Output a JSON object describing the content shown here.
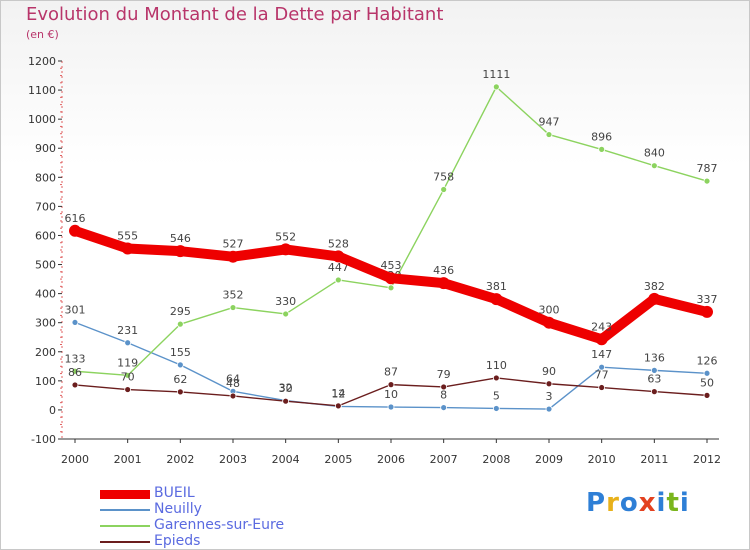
{
  "title": "Evolution du Montant de la Dette par Habitant",
  "subtitle": "(en €)",
  "logo": {
    "text": "Proxiti",
    "colors": [
      "#2e7fd6",
      "#e8b11a",
      "#2e7fd6",
      "#e3411f",
      "#2e7fd6",
      "#7ab51d",
      "#2e7fd6"
    ]
  },
  "chart_data": {
    "type": "line",
    "x": [
      2000,
      2001,
      2002,
      2003,
      2004,
      2005,
      2006,
      2007,
      2008,
      2009,
      2010,
      2011,
      2012
    ],
    "ylim": [
      -100,
      1200
    ],
    "yticks": [
      -100,
      0,
      100,
      200,
      300,
      400,
      500,
      600,
      700,
      800,
      900,
      1000,
      1100,
      1200
    ],
    "grid": false,
    "legend_position": "bottom-left",
    "series": [
      {
        "name": "Neuilly",
        "color": "#5b92c9",
        "values": [
          301,
          231,
          155,
          64,
          32,
          12,
          10,
          8,
          5,
          3,
          147,
          136,
          126
        ],
        "labels": [
          "301",
          "231",
          "155",
          "64",
          "32",
          "12",
          "10",
          "8",
          "5",
          "3",
          "147",
          "136",
          "126"
        ]
      },
      {
        "name": "Garennes-sur-Eure",
        "color": "#8cd35f",
        "values": [
          133,
          119,
          295,
          352,
          330,
          447,
          420,
          758,
          1111,
          947,
          896,
          840,
          787
        ],
        "labels": [
          "133",
          "119",
          "295",
          "352",
          "330",
          "447",
          "420",
          "758",
          "1111",
          "947",
          "896",
          "840",
          "787"
        ]
      },
      {
        "name": "Epieds",
        "color": "#6b1e1e",
        "values": [
          86,
          70,
          62,
          48,
          30,
          14,
          87,
          79,
          110,
          90,
          77,
          63,
          50
        ],
        "labels": [
          "86",
          "70",
          "62",
          "48",
          "30",
          "14",
          "87",
          "79",
          "110",
          "90",
          "77",
          "63",
          "50"
        ]
      },
      {
        "name": "BUEIL",
        "color": "#ee0000",
        "values": [
          616,
          555,
          546,
          527,
          552,
          528,
          453,
          436,
          381,
          300,
          243,
          382,
          337
        ],
        "labels": [
          "616",
          "555",
          "546",
          "527",
          "552",
          "528",
          "453",
          "436",
          "381",
          "300",
          "243",
          "382",
          "337"
        ]
      }
    ],
    "legend": [
      "BUEIL",
      "Neuilly",
      "Garennes-sur-Eure",
      "Epieds"
    ]
  }
}
